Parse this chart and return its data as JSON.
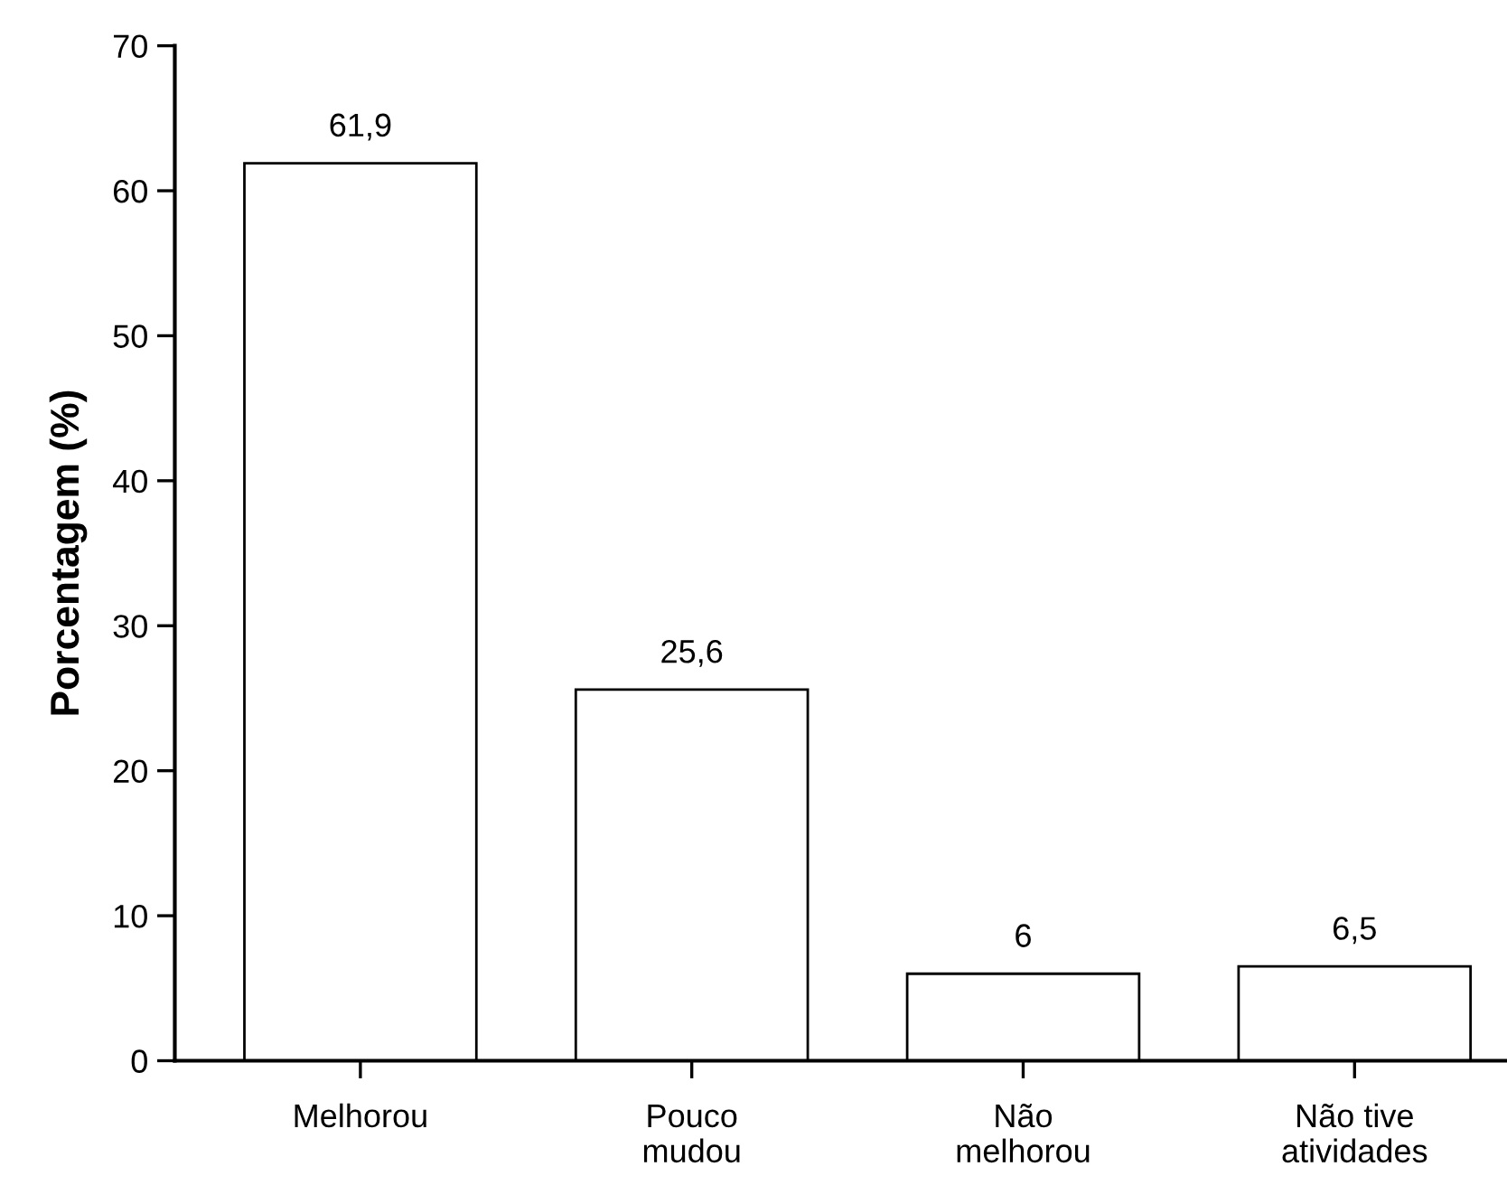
{
  "chart_data": {
    "type": "bar",
    "ylabel": "Porcentagem (%)",
    "categories": [
      "Melhorou",
      "Pouco\nmudou",
      "Não\nmelhorou",
      "Não tive\natividades"
    ],
    "values": [
      61.9,
      25.6,
      6,
      6.5
    ],
    "value_labels": [
      "61,9",
      "25,6",
      "6",
      "6,5"
    ],
    "color": "#ffffff",
    "ylim": [
      0,
      70
    ],
    "yticks": [
      0,
      10,
      20,
      30,
      40,
      50,
      60,
      70
    ],
    "grid": false
  }
}
